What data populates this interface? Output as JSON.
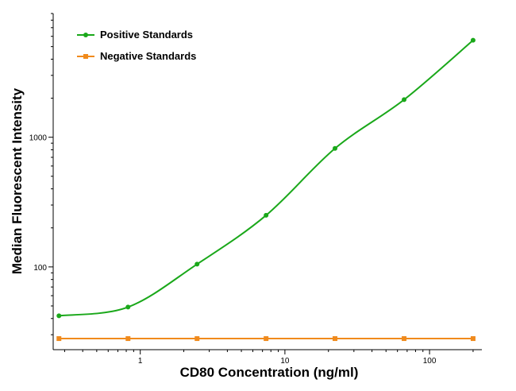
{
  "chart_data": {
    "type": "line",
    "title": "",
    "xlabel": "CD80 Concentration (ng/ml)",
    "ylabel": "Median Fluorescent Intensity",
    "xscale": "log",
    "yscale": "log",
    "xlim": [
      0.25,
      230
    ],
    "ylim": [
      23,
      9000
    ],
    "x_ticks": [
      1,
      10,
      100
    ],
    "x_tick_labels": [
      "1",
      "10",
      "100"
    ],
    "y_ticks": [
      100,
      1000
    ],
    "y_tick_labels": [
      "100",
      "1000"
    ],
    "grid": false,
    "legend_position": "top-left",
    "series": [
      {
        "name": "Positive Standards",
        "color": "#1aa81a",
        "marker": "circle",
        "fit_curve": true,
        "x": [
          0.274,
          0.823,
          2.47,
          7.41,
          22.2,
          66.7,
          200
        ],
        "y": [
          42,
          49,
          105,
          250,
          820,
          1950,
          5600
        ]
      },
      {
        "name": "Negative Standards",
        "color": "#f08a1c",
        "marker": "square",
        "fit_curve": false,
        "x": [
          0.274,
          0.823,
          2.47,
          7.41,
          22.2,
          66.7,
          200
        ],
        "y": [
          28,
          28,
          28,
          28,
          28,
          28,
          28
        ]
      }
    ]
  }
}
